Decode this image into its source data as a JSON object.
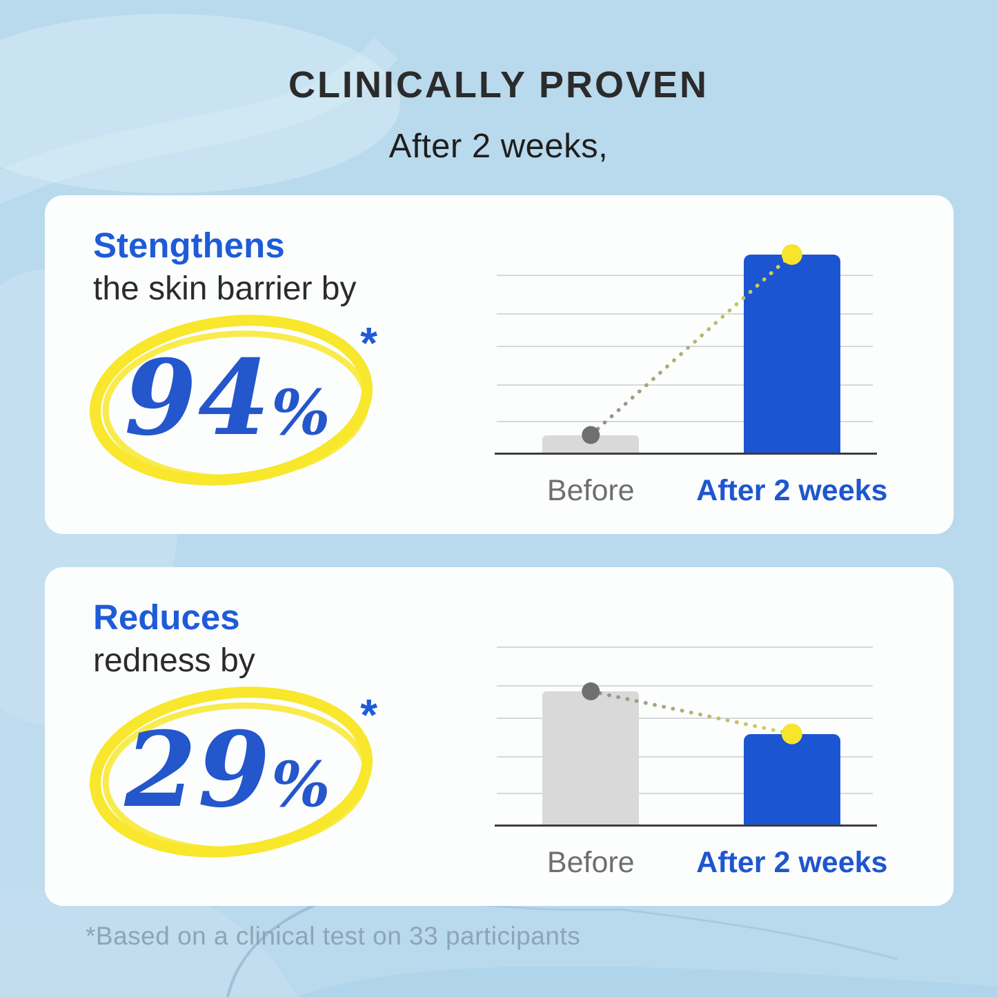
{
  "header": {
    "title": "CLINICALLY PROVEN",
    "subtitle": "After 2 weeks,"
  },
  "cards": [
    {
      "heading_highlight": "Stengthens",
      "heading_rest": "the skin barrier by",
      "value_number": "94",
      "value_symbol": "%",
      "asterisk": "*"
    },
    {
      "heading_highlight": "Reduces",
      "heading_rest": "redness by",
      "value_number": "29",
      "value_symbol": "%",
      "asterisk": "*"
    }
  ],
  "footer": {
    "note": "*Based on a clinical test on 33 participants"
  },
  "chart_data": [
    {
      "type": "bar",
      "title": "Stengthens the skin barrier by 94%*",
      "categories": [
        "Before",
        "After 2 weeks"
      ],
      "values": [
        9,
        98
      ],
      "values_note": "no numeric axis shown; values estimated as percent of plot height",
      "bar_colors": [
        "#d9d9d9",
        "#1c55d2"
      ],
      "label_colors": [
        "#6e6e6e",
        "#1e56cf"
      ],
      "grid": true,
      "legend": false,
      "connector": {
        "style": "dotted",
        "start_dot_color": "#6f6f6f",
        "end_dot_color": "#f6e52c",
        "gradient": [
          "#8f8f8f",
          "#ded455"
        ]
      },
      "layout": {
        "bar_centers_pct": [
          25,
          78.5
        ],
        "bar_width_pct": 25.7,
        "gridlines_pct": [
          12,
          31,
          47,
          66,
          84
        ]
      }
    },
    {
      "type": "bar",
      "title": "Reduces redness by 29%*",
      "categories": [
        "Before",
        "After 2 weeks"
      ],
      "values": [
        66,
        45
      ],
      "values_note": "no numeric axis shown; values estimated as percent of plot height",
      "bar_colors": [
        "#d9d9d9",
        "#1c55d2"
      ],
      "label_colors": [
        "#6e6e6e",
        "#1e56cf"
      ],
      "grid": true,
      "legend": false,
      "connector": {
        "style": "dotted",
        "start_dot_color": "#6f6f6f",
        "end_dot_color": "#f6e52c",
        "gradient": [
          "#8f8f8f",
          "#ded455"
        ]
      },
      "layout": {
        "bar_centers_pct": [
          25,
          78.5
        ],
        "bar_width_pct": 25.7,
        "gridlines_pct": [
          12,
          31,
          47,
          66,
          84
        ]
      }
    }
  ],
  "colors": {
    "background": "#b9d9ec",
    "card": "#fcfdfd",
    "accent_blue": "#1e5bd8",
    "number_blue": "#2456cc",
    "bar_blue": "#1c55d2",
    "highlight_yellow": "#f8e72c",
    "text_dark": "#2b2b2b",
    "gray_bar": "#d9d9d9",
    "gray_label": "#6e6e6e",
    "gridline": "#c9ccce",
    "baseline": "#3c3c3c",
    "footnote": "#8ba3b4"
  }
}
